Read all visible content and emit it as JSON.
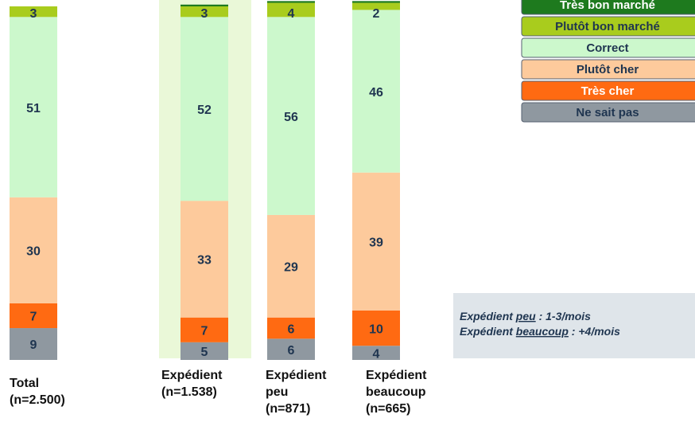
{
  "chart_data": {
    "type": "stacked_bar",
    "categories": [
      [
        "Total",
        "(n=2.500)"
      ],
      [
        "Expédient",
        "(n=1.538)"
      ],
      [
        "Expédient",
        "peu",
        "(n=871)"
      ],
      [
        "Expédient",
        "beaucoup",
        "(n=665)"
      ]
    ],
    "series": [
      {
        "name": "Ne sait pas",
        "color": "#8f98a0",
        "values": [
          9,
          5,
          6,
          4
        ]
      },
      {
        "name": "Très cher",
        "color": "#ff6a12",
        "values": [
          7,
          7,
          6,
          10
        ]
      },
      {
        "name": "Plutôt cher",
        "color": "#fdca9c",
        "values": [
          30,
          33,
          29,
          39
        ]
      },
      {
        "name": "Correct",
        "color": "#ccf8cc",
        "values": [
          51,
          52,
          56,
          46
        ]
      },
      {
        "name": "Plutôt bon marché",
        "color": "#a9cc1d",
        "values": [
          3,
          3,
          4,
          2
        ]
      },
      {
        "name": "Très bon marché",
        "color": "#1e7a1e",
        "values": [
          0,
          0.5,
          0.5,
          0.5
        ]
      }
    ],
    "ylim": [
      0,
      100
    ],
    "notes": [
      [
        "Expédient ",
        "peu",
        " :  1-3/mois"
      ],
      [
        "Expédient ",
        "beaucoup",
        " : +4/mois"
      ]
    ]
  }
}
